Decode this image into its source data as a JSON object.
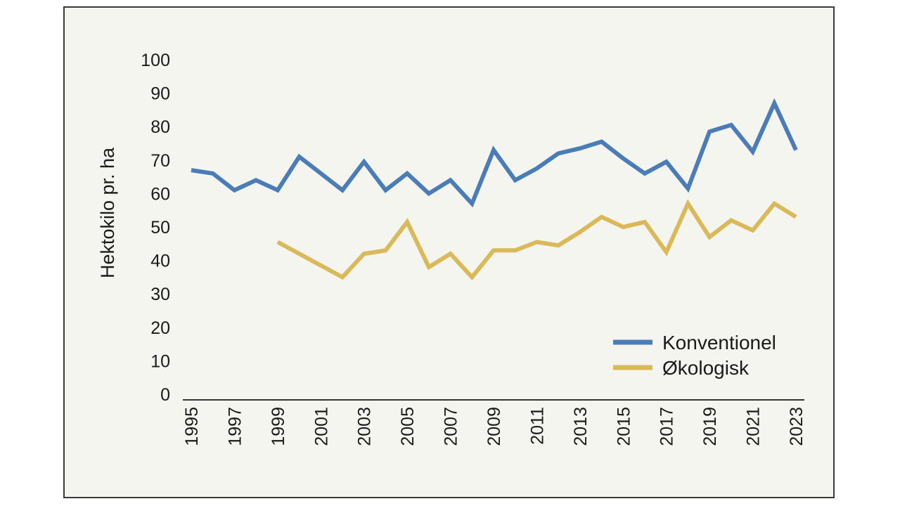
{
  "chart_data": {
    "type": "line",
    "title": "",
    "xlabel": "",
    "ylabel": "Hektokilo pr. ha",
    "ylim": [
      0,
      100
    ],
    "xlim": [
      1995,
      2023
    ],
    "y_ticks": [
      0,
      10,
      20,
      30,
      40,
      50,
      60,
      70,
      80,
      90,
      100
    ],
    "x_tick_labels": [
      "1995",
      "1997",
      "1999",
      "2001",
      "2003",
      "2005",
      "2007",
      "2009",
      "2011",
      "2013",
      "2015",
      "2017",
      "2019",
      "2021",
      "2023"
    ],
    "grid": false,
    "legend_position": "bottom-right",
    "series": [
      {
        "name": "Konventionel",
        "color": "#4a7db8",
        "x": [
          1995,
          1996,
          1997,
          1998,
          1999,
          2000,
          2001,
          2002,
          2003,
          2004,
          2005,
          2006,
          2007,
          2008,
          2009,
          2010,
          2011,
          2012,
          2013,
          2014,
          2015,
          2016,
          2017,
          2018,
          2019,
          2020,
          2021,
          2022,
          2023
        ],
        "values": [
          67,
          66,
          61,
          64,
          61,
          71,
          66,
          61,
          69.5,
          61,
          66,
          60,
          64,
          57,
          73,
          64,
          67.5,
          72,
          73.5,
          75.5,
          70.5,
          66,
          69.5,
          61.5,
          78.5,
          80.5,
          72.5,
          87,
          73
        ]
      },
      {
        "name": "Økologisk",
        "color": "#d9b95a",
        "x": [
          1999,
          2002,
          2003,
          2004,
          2005,
          2006,
          2007,
          2008,
          2009,
          2010,
          2011,
          2012,
          2013,
          2014,
          2015,
          2016,
          2017,
          2018,
          2019,
          2020,
          2021,
          2022,
          2023
        ],
        "values": [
          45.5,
          35,
          42,
          43,
          51.5,
          38,
          42,
          35,
          43,
          43,
          45.5,
          44.5,
          48.5,
          53,
          50,
          51.5,
          42.5,
          57,
          47,
          52,
          49,
          57,
          53
        ]
      }
    ]
  }
}
